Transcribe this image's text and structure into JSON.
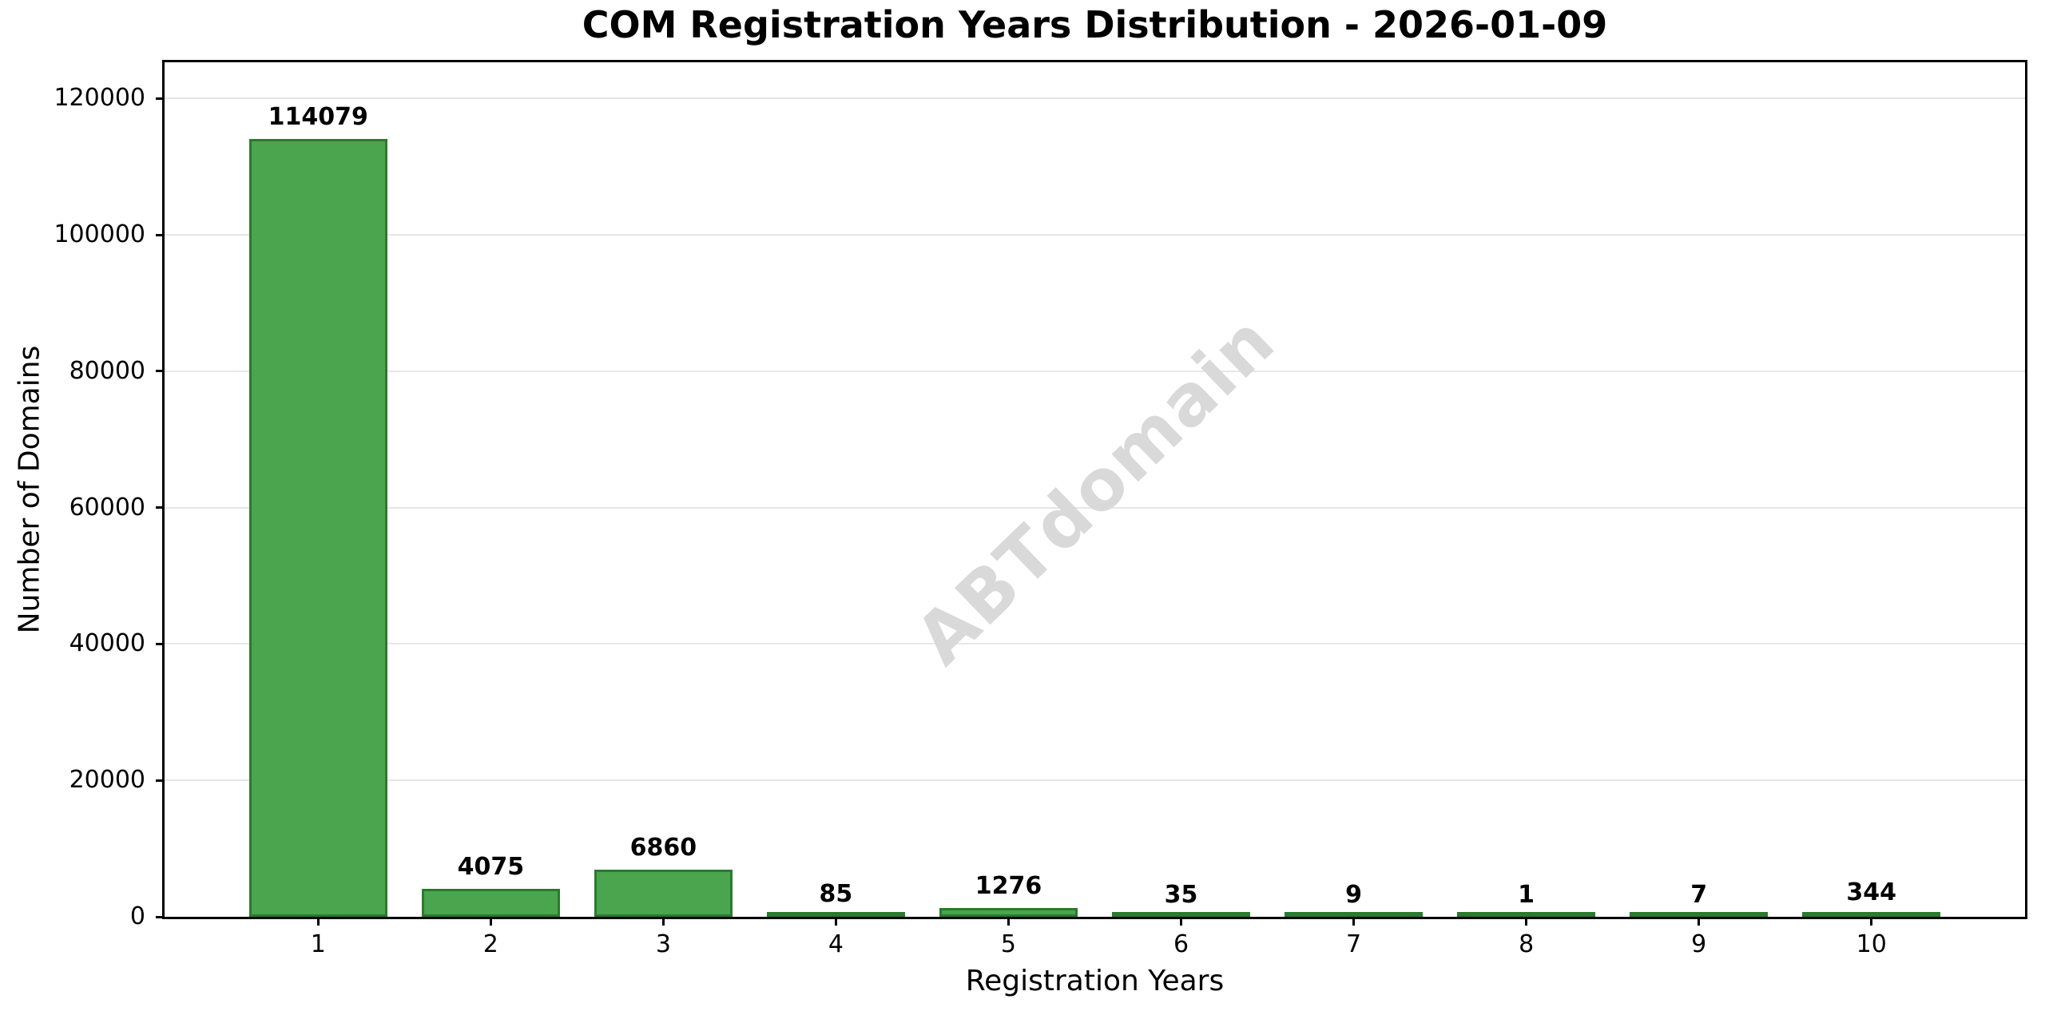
{
  "chart_data": {
    "type": "bar",
    "title": "COM Registration Years Distribution - 2026-01-09",
    "xlabel": "Registration Years",
    "ylabel": "Number of Domains",
    "categories": [
      "1",
      "2",
      "3",
      "4",
      "5",
      "6",
      "7",
      "8",
      "9",
      "10"
    ],
    "x": [
      1,
      2,
      3,
      4,
      5,
      6,
      7,
      8,
      9,
      10
    ],
    "values": [
      114079,
      4075,
      6860,
      85,
      1276,
      35,
      9,
      1,
      7,
      344
    ],
    "bar_value_labels": [
      "114079",
      "4075",
      "6860",
      "85",
      "1276",
      "35",
      "9",
      "1",
      "7",
      "344"
    ],
    "yticks": [
      0,
      20000,
      40000,
      60000,
      80000,
      100000,
      120000
    ],
    "ytick_labels": [
      "0",
      "20000",
      "40000",
      "60000",
      "80000",
      "100000",
      "120000"
    ],
    "ylim": [
      0,
      125300
    ],
    "xlim": [
      0.11,
      10.89
    ],
    "bar_width_units": 0.8,
    "grid": "horizontal-light",
    "legend": "none",
    "watermark": "ABTdomain",
    "colors": {
      "bar_fill": "#4ba54e",
      "bar_edge": "#2b7a2e",
      "gridline": "#e6e6e6",
      "axis": "#000000",
      "text": "#000000",
      "watermark": "#d9d9d9",
      "background": "#ffffff"
    }
  }
}
